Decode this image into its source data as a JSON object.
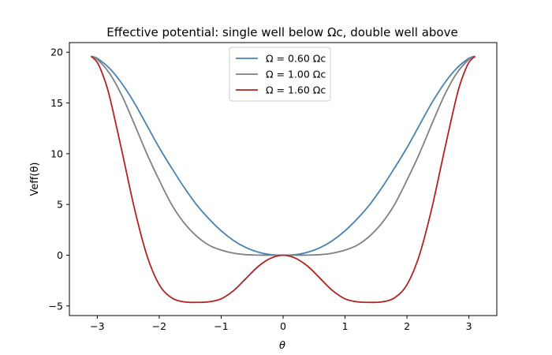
{
  "chart_data": {
    "type": "line",
    "title": "Effective potential: single well below Ωc, double well above",
    "xlabel": "θ",
    "ylabel": "Veff(θ)",
    "xlim": [
      -3.45,
      3.45
    ],
    "ylim": [
      -5.95,
      20.95
    ],
    "xticks": [
      -3,
      -2,
      -1,
      0,
      1,
      2,
      3
    ],
    "yticks": [
      -5,
      0,
      5,
      10,
      15,
      20
    ],
    "xtick_labels": [
      "−3",
      "−2",
      "−1",
      "0",
      "1",
      "2",
      "3"
    ],
    "ytick_labels": [
      "−5",
      "0",
      "5",
      "10",
      "15",
      "20"
    ],
    "grid": false,
    "legend_position": "upper center",
    "series": [
      {
        "name": "Ω = 0.60 Ωc",
        "color": "#4682b4",
        "x": [
          -3.1,
          -3.0,
          -2.8,
          -2.6,
          -2.4,
          -2.2,
          -2.0,
          -1.8,
          -1.6,
          -1.4,
          -1.2,
          -1.0,
          -0.8,
          -0.6,
          -0.4,
          -0.2,
          0.0,
          0.2,
          0.4,
          0.6,
          0.8,
          1.0,
          1.2,
          1.4,
          1.6,
          1.8,
          2.0,
          2.2,
          2.4,
          2.6,
          2.8,
          3.0,
          3.1
        ],
        "y": [
          19.6,
          19.4,
          18.4,
          16.9,
          15.0,
          12.8,
          10.6,
          8.6,
          6.7,
          5.0,
          3.6,
          2.4,
          1.45,
          0.75,
          0.3,
          0.05,
          0.0,
          0.05,
          0.3,
          0.75,
          1.45,
          2.4,
          3.6,
          5.0,
          6.7,
          8.6,
          10.6,
          12.8,
          15.0,
          16.9,
          18.4,
          19.4,
          19.6
        ]
      },
      {
        "name": "Ω = 1.00 Ωc",
        "color": "#808080",
        "x": [
          -3.1,
          -3.0,
          -2.8,
          -2.6,
          -2.4,
          -2.2,
          -2.0,
          -1.8,
          -1.6,
          -1.4,
          -1.2,
          -1.0,
          -0.8,
          -0.6,
          -0.4,
          -0.2,
          0.0,
          0.2,
          0.4,
          0.6,
          0.8,
          1.0,
          1.2,
          1.4,
          1.6,
          1.8,
          2.0,
          2.2,
          2.4,
          2.6,
          2.8,
          3.0,
          3.1
        ],
        "y": [
          19.6,
          19.3,
          17.9,
          15.7,
          12.9,
          10.0,
          7.4,
          5.0,
          3.2,
          1.9,
          1.0,
          0.5,
          0.2,
          0.05,
          0.01,
          0.0,
          0.0,
          0.0,
          0.01,
          0.05,
          0.2,
          0.5,
          1.0,
          1.9,
          3.2,
          5.0,
          7.4,
          10.0,
          12.9,
          15.7,
          17.9,
          19.3,
          19.6
        ]
      },
      {
        "name": "Ω = 1.60 Ωc",
        "color": "#b22222",
        "x": [
          -3.1,
          -3.0,
          -2.9,
          -2.8,
          -2.6,
          -2.4,
          -2.2,
          -2.0,
          -1.8,
          -1.6,
          -1.4,
          -1.2,
          -1.0,
          -0.8,
          -0.6,
          -0.4,
          -0.2,
          0.0,
          0.2,
          0.4,
          0.6,
          0.8,
          1.0,
          1.2,
          1.4,
          1.6,
          1.8,
          2.0,
          2.2,
          2.4,
          2.6,
          2.8,
          2.9,
          3.0,
          3.1
        ],
        "y": [
          19.6,
          19.0,
          17.6,
          15.6,
          10.2,
          4.6,
          0.0,
          -2.9,
          -4.2,
          -4.6,
          -4.65,
          -4.6,
          -4.3,
          -3.5,
          -2.3,
          -1.1,
          -0.3,
          0.0,
          -0.3,
          -1.1,
          -2.3,
          -3.5,
          -4.3,
          -4.6,
          -4.65,
          -4.6,
          -4.2,
          -2.9,
          0.0,
          4.6,
          10.2,
          15.6,
          17.6,
          19.0,
          19.6
        ]
      }
    ]
  }
}
